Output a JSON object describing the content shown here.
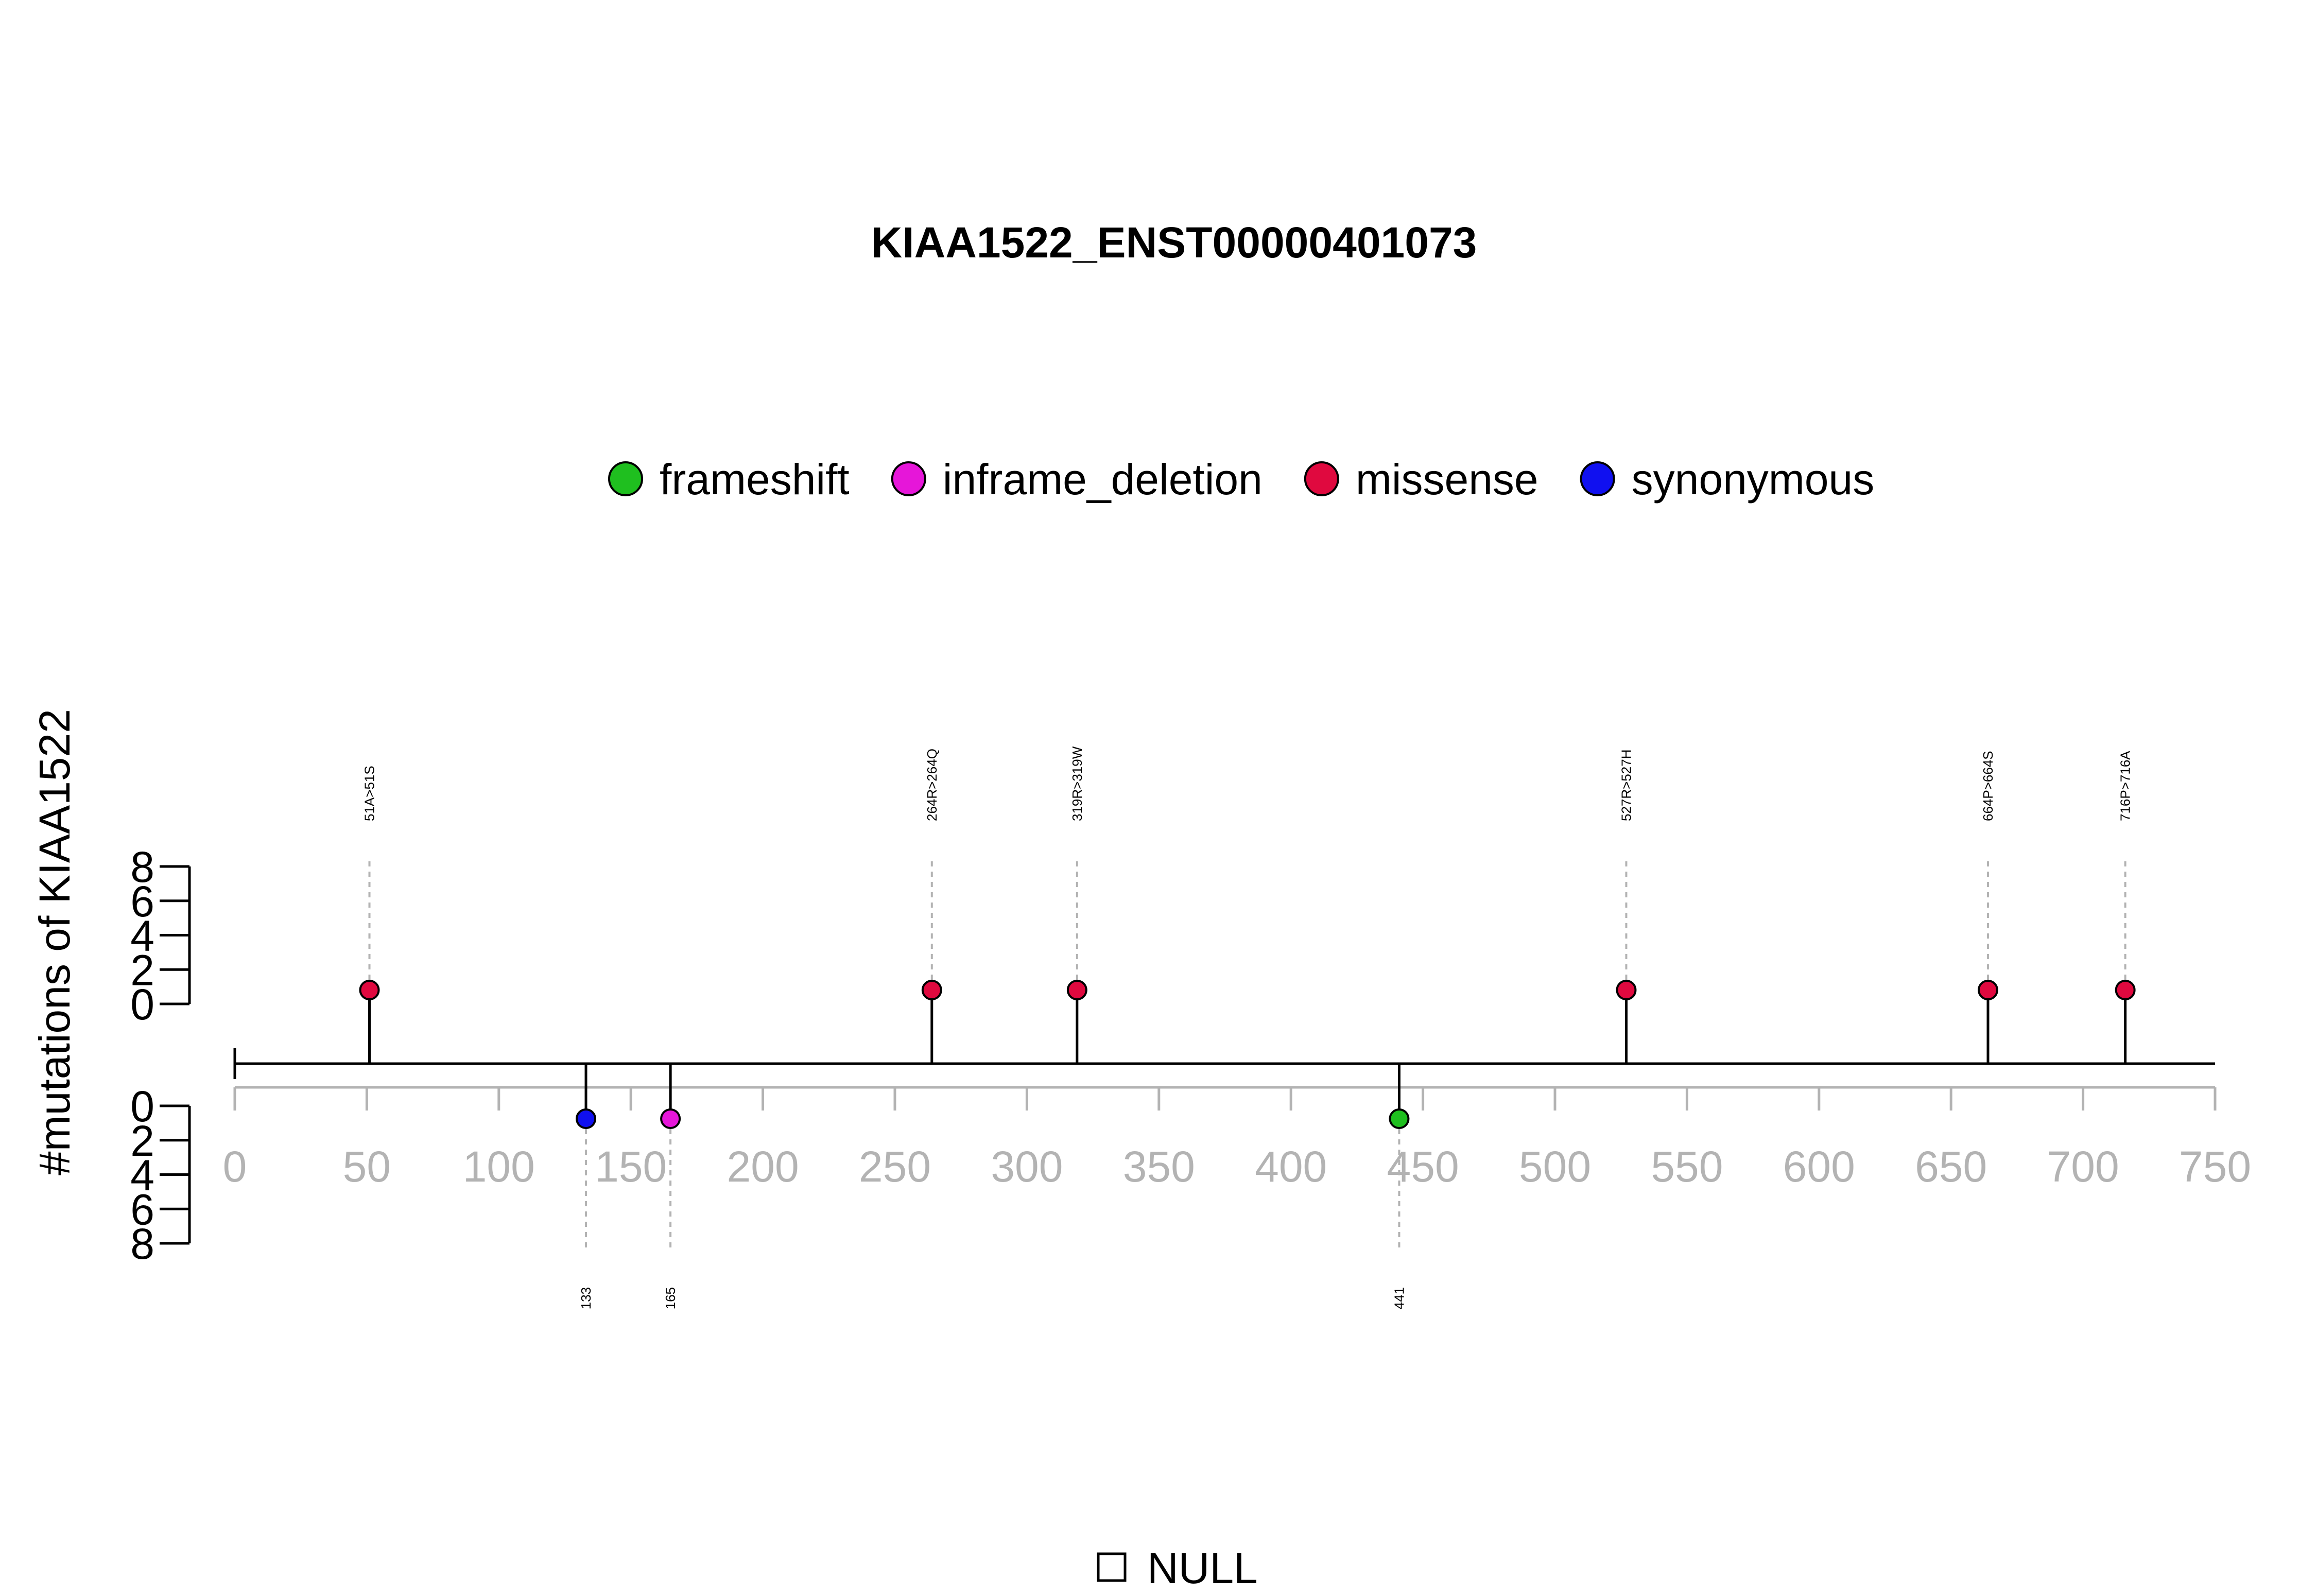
{
  "chart_data": {
    "type": "lollipop",
    "title": "KIAA1522_ENST00000401073",
    "ylabel": "#mutations of KIAA1522",
    "xlim": [
      0,
      750
    ],
    "x_ticks": [
      0,
      50,
      100,
      150,
      200,
      250,
      300,
      350,
      400,
      450,
      500,
      550,
      600,
      650,
      700,
      750
    ],
    "count_ticks": [
      0,
      2,
      4,
      6,
      8
    ],
    "count_lim": [
      0,
      8
    ],
    "legend": {
      "placement": "top-center",
      "entries": [
        {
          "name": "frameshift",
          "color": "#1fbf1f"
        },
        {
          "name": "inframe_deletion",
          "color": "#e616d9"
        },
        {
          "name": "missense",
          "color": "#e0093f"
        },
        {
          "name": "synonymous",
          "color": "#1010f0"
        }
      ]
    },
    "mutations_above": [
      {
        "position": 51,
        "label": "51A>51S",
        "type": "missense",
        "count": 1
      },
      {
        "position": 264,
        "label": "264R>264Q",
        "type": "missense",
        "count": 1
      },
      {
        "position": 319,
        "label": "319R>319W",
        "type": "missense",
        "count": 1
      },
      {
        "position": 527,
        "label": "527R>527H",
        "type": "missense",
        "count": 1
      },
      {
        "position": 664,
        "label": "664P>664S",
        "type": "missense",
        "count": 1
      },
      {
        "position": 716,
        "label": "716P>716A",
        "type": "missense",
        "count": 1
      }
    ],
    "mutations_below": [
      {
        "position": 133,
        "label": "133",
        "type": "synonymous",
        "count": 1
      },
      {
        "position": 165,
        "label": "165",
        "type": "inframe_deletion",
        "count": 1
      },
      {
        "position": 441,
        "label": "441",
        "type": "frameshift",
        "count": 1
      }
    ],
    "domain_legend": [
      {
        "name": "NULL"
      }
    ]
  }
}
